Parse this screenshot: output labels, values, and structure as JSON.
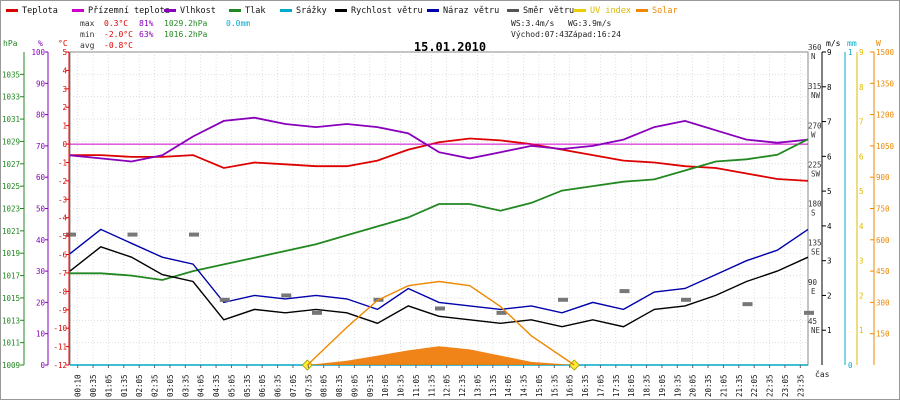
{
  "legend": [
    {
      "label": "Teplota",
      "color": "#dd0000"
    },
    {
      "label": "Přízemní teplota",
      "color": "#cc00cc"
    },
    {
      "label": "Vlhkost",
      "color": "#8800bb"
    },
    {
      "label": "Tlak",
      "color": "#228822"
    },
    {
      "label": "Srážky",
      "color": "#00aacc"
    },
    {
      "label": "Rychlost větru",
      "color": "#000000"
    },
    {
      "label": "Náraz větru",
      "color": "#0000aa"
    },
    {
      "label": "Směr větru",
      "color": "#555555"
    },
    {
      "label": "UV index",
      "color": "#eecc00"
    },
    {
      "label": "Solar",
      "color": "#ee8800"
    }
  ],
  "stats": {
    "max_label": "max",
    "max_temp": "0.3°C",
    "max_hum": "81%",
    "max_press": "1029.2hPa",
    "max_rain": "0.0mm",
    "min_label": "min",
    "min_temp": "-2.0°C",
    "min_hum": "63%",
    "min_press": "1016.2hPa",
    "avg_label": "avg",
    "avg_temp": "-0.8°C",
    "ws": "WS:3.4m/s",
    "wg": "WG:3.9m/s",
    "sunrise": "Východ:07:43",
    "sunset": "Západ:16:24"
  },
  "chart_data": {
    "type": "line",
    "title": "15.01.2010",
    "x_axis_label": "čas",
    "x_ticks": [
      "00:10",
      "00:35",
      "01:05",
      "01:35",
      "02:05",
      "02:35",
      "03:05",
      "03:35",
      "04:05",
      "04:35",
      "05:05",
      "05:35",
      "06:05",
      "06:35",
      "07:05",
      "07:35",
      "08:05",
      "08:35",
      "09:05",
      "09:35",
      "10:05",
      "10:35",
      "11:05",
      "11:35",
      "12:05",
      "12:35",
      "13:05",
      "13:35",
      "14:05",
      "14:35",
      "15:05",
      "15:35",
      "16:05",
      "16:35",
      "17:05",
      "17:35",
      "18:05",
      "18:35",
      "19:05",
      "19:35",
      "20:05",
      "20:35",
      "21:05",
      "21:35",
      "22:05",
      "22:35",
      "23:05",
      "23:35"
    ],
    "axes": {
      "pressure_hpa": {
        "unit": "hPa",
        "range": [
          1009,
          1037
        ],
        "ticks": [
          "1009",
          "1011",
          "1013",
          "1015",
          "1017",
          "1019",
          "1021",
          "1023",
          "1025",
          "1027",
          "1029",
          "1031",
          "1033",
          "1035"
        ]
      },
      "humidity_pct": {
        "unit": "%",
        "range": [
          0,
          100
        ],
        "ticks": [
          "0",
          "10",
          "20",
          "30",
          "40",
          "50",
          "60",
          "70",
          "80",
          "90",
          "100"
        ]
      },
      "temperature_c": {
        "unit": "°C",
        "range": [
          -12,
          5
        ],
        "ticks": [
          "-12",
          "-11",
          "-10",
          "-9",
          "-8",
          "-7",
          "-6",
          "-5",
          "-4",
          "-3",
          "-2",
          "-1",
          "0",
          "1",
          "2",
          "3",
          "4",
          "5"
        ]
      },
      "wind_dir": {
        "unit": "",
        "range": [
          0,
          360
        ],
        "ticks": [
          {
            "v": 45,
            "deg": "45",
            "dir": "NE"
          },
          {
            "v": 90,
            "deg": "90",
            "dir": "E"
          },
          {
            "v": 135,
            "deg": "135",
            "dir": "SE"
          },
          {
            "v": 180,
            "deg": "180",
            "dir": "S"
          },
          {
            "v": 225,
            "deg": "225",
            "dir": "SW"
          },
          {
            "v": 270,
            "deg": "270",
            "dir": "W"
          },
          {
            "v": 315,
            "deg": "315",
            "dir": "NW"
          },
          {
            "v": 360,
            "deg": "360",
            "dir": "N"
          }
        ]
      },
      "wind_speed": {
        "unit": "m/s",
        "range": [
          0,
          9
        ],
        "ticks": [
          "1",
          "2",
          "3",
          "4",
          "5",
          "6",
          "7",
          "8",
          "9"
        ]
      },
      "rain_mm": {
        "unit": "mm",
        "range": [
          0,
          1
        ],
        "ticks": [
          "0",
          "1"
        ]
      },
      "uv_index": {
        "unit": "",
        "range": [
          0,
          9
        ],
        "ticks": [
          "1",
          "2",
          "3",
          "4",
          "5",
          "6",
          "7",
          "8",
          "9"
        ]
      },
      "solar": {
        "unit": "W",
        "range": [
          0,
          1500
        ],
        "ticks": [
          "150",
          "300",
          "450",
          "600",
          "750",
          "900",
          "1050",
          "1200",
          "1350",
          "1500"
        ]
      }
    },
    "series": [
      {
        "name": "Teplota",
        "axis": "temperature_c",
        "x": [
          0,
          1,
          2,
          3,
          4,
          5,
          6,
          7,
          8,
          9,
          10,
          11,
          12,
          13,
          14,
          15,
          16,
          17,
          18,
          19,
          20,
          21,
          22,
          23,
          24
        ],
        "values": [
          -0.6,
          -0.6,
          -0.7,
          -0.7,
          -0.6,
          -1.3,
          -1.0,
          -1.1,
          -1.2,
          -1.2,
          -0.9,
          -0.3,
          0.1,
          0.3,
          0.2,
          0.0,
          -0.3,
          -0.6,
          -0.9,
          -1.0,
          -1.2,
          -1.3,
          -1.6,
          -1.9,
          -2.0
        ]
      },
      {
        "name": "Přízemní teplota",
        "axis": "temperature_c",
        "x": [
          0,
          24
        ],
        "values": [
          0.0,
          0.0
        ]
      },
      {
        "name": "Vlhkost",
        "axis": "humidity_pct",
        "x": [
          0,
          1,
          2,
          3,
          4,
          5,
          6,
          7,
          8,
          9,
          10,
          11,
          12,
          13,
          14,
          15,
          16,
          17,
          18,
          19,
          20,
          21,
          22,
          23,
          24
        ],
        "values": [
          67,
          66,
          65,
          67,
          73,
          78,
          79,
          77,
          76,
          77,
          76,
          74,
          68,
          66,
          68,
          70,
          69,
          70,
          72,
          76,
          78,
          75,
          72,
          71,
          72
        ]
      },
      {
        "name": "Tlak",
        "axis": "pressure_hpa",
        "x": [
          0,
          1,
          2,
          3,
          4,
          5,
          6,
          7,
          8,
          9,
          10,
          11,
          12,
          13,
          14,
          15,
          16,
          17,
          18,
          19,
          20,
          21,
          22,
          23,
          24
        ],
        "values": [
          1017.2,
          1017.2,
          1017.0,
          1016.6,
          1017.4,
          1018.0,
          1018.6,
          1019.2,
          1019.8,
          1020.6,
          1021.4,
          1022.2,
          1023.4,
          1023.4,
          1022.8,
          1023.5,
          1024.6,
          1025.0,
          1025.4,
          1025.6,
          1026.4,
          1027.2,
          1027.4,
          1027.8,
          1029.2
        ]
      },
      {
        "name": "Srážky",
        "axis": "rain_mm",
        "x": [
          0,
          24
        ],
        "values": [
          0,
          0
        ]
      },
      {
        "name": "Rychlost větru",
        "axis": "wind_speed",
        "x": [
          0,
          1,
          2,
          3,
          4,
          5,
          6,
          7,
          8,
          9,
          10,
          11,
          12,
          13,
          14,
          15,
          16,
          17,
          18,
          19,
          20,
          21,
          22,
          23,
          24
        ],
        "values": [
          2.7,
          3.4,
          3.1,
          2.6,
          2.4,
          1.3,
          1.6,
          1.5,
          1.6,
          1.5,
          1.2,
          1.7,
          1.4,
          1.3,
          1.2,
          1.3,
          1.1,
          1.3,
          1.1,
          1.6,
          1.7,
          2.0,
          2.4,
          2.7,
          3.1
        ]
      },
      {
        "name": "Náraz větru",
        "axis": "wind_speed",
        "x": [
          0,
          1,
          2,
          3,
          4,
          5,
          6,
          7,
          8,
          9,
          10,
          11,
          12,
          13,
          14,
          15,
          16,
          17,
          18,
          19,
          20,
          21,
          22,
          23,
          24
        ],
        "values": [
          3.2,
          3.9,
          3.5,
          3.1,
          2.9,
          1.8,
          2.0,
          1.9,
          2.0,
          1.9,
          1.6,
          2.2,
          1.8,
          1.7,
          1.6,
          1.7,
          1.5,
          1.8,
          1.6,
          2.1,
          2.2,
          2.6,
          3.0,
          3.3,
          3.9
        ]
      },
      {
        "name": "Směr větru",
        "axis": "wind_dir",
        "x": [
          0,
          2,
          4,
          5,
          7,
          8,
          10,
          12,
          14,
          16,
          18,
          20,
          22,
          24
        ],
        "values": [
          150,
          150,
          150,
          75,
          80,
          60,
          75,
          65,
          60,
          75,
          85,
          75,
          70,
          60
        ]
      },
      {
        "name": "UV index",
        "axis": "uv_index",
        "x": [
          7.72,
          16.4
        ],
        "values": [
          0,
          0
        ]
      },
      {
        "name": "Solar",
        "axis": "solar",
        "x": [
          7.72,
          9,
          10,
          11,
          12,
          13,
          14,
          15,
          16.4
        ],
        "values": [
          0,
          180,
          310,
          380,
          400,
          380,
          280,
          140,
          0
        ]
      },
      {
        "name": "Solar",
        "axis": "solar",
        "x": [
          7.72,
          9,
          10,
          11,
          12,
          13,
          14,
          15,
          16.4
        ],
        "values": [
          0,
          20,
          45,
          70,
          90,
          75,
          45,
          15,
          0
        ]
      }
    ]
  }
}
